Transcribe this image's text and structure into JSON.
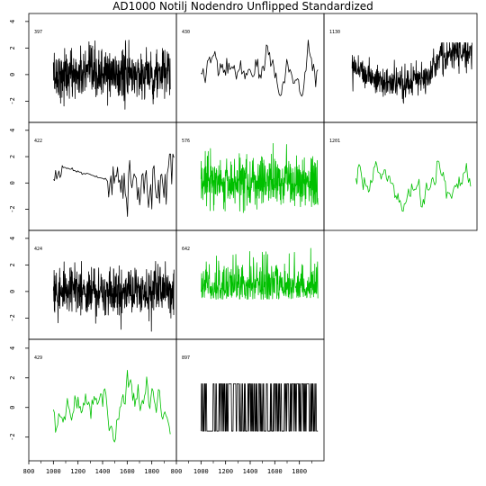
{
  "title": "AD1000 Notilj Nodendro Unflipped Standardized",
  "colors": {
    "black_series": "#000000",
    "green_series": "#00c000",
    "frame": "#000000",
    "background": "#ffffff"
  },
  "chart_data": {
    "type": "line",
    "layout": "small-multiples",
    "grid": false,
    "x_ticks": [
      "800",
      "1000",
      "1200",
      "1400",
      "1600",
      "1800"
    ],
    "x_tick_values": [
      800,
      1000,
      1200,
      1400,
      1600,
      1800
    ],
    "y_ticks": [
      "-2",
      "0",
      "2",
      "4"
    ],
    "y_tick_values": [
      -2,
      0,
      2,
      4
    ],
    "xlim": [
      800,
      2000
    ],
    "ylim": [
      -3.6,
      4.6
    ],
    "panels": [
      {
        "id": "397",
        "color": "black",
        "row": 0,
        "col": 0,
        "style": "dense",
        "x_start": 1000,
        "x_end": 1950
      },
      {
        "id": "430",
        "color": "black",
        "row": 0,
        "col": 1,
        "style": "smooth",
        "x_start": 1000,
        "x_end": 1950
      },
      {
        "id": "1130",
        "color": "black",
        "row": 0,
        "col": 2,
        "style": "trend",
        "x_start": 1020,
        "x_end": 1960
      },
      {
        "id": "422",
        "color": "black",
        "row": 1,
        "col": 0,
        "style": "gap",
        "x_start": 1000,
        "x_end": 1980
      },
      {
        "id": "576",
        "color": "green",
        "row": 1,
        "col": 1,
        "style": "dense",
        "x_start": 1000,
        "x_end": 1950
      },
      {
        "id": "1201",
        "color": "green",
        "row": 1,
        "col": 2,
        "style": "smooth",
        "x_start": 1050,
        "x_end": 1950
      },
      {
        "id": "424",
        "color": "black",
        "row": 2,
        "col": 0,
        "style": "dense",
        "x_start": 1000,
        "x_end": 1980
      },
      {
        "id": "642",
        "color": "green",
        "row": 2,
        "col": 1,
        "style": "medium",
        "x_start": 1000,
        "x_end": 1950
      },
      {
        "id": "429",
        "color": "green",
        "row": 3,
        "col": 0,
        "style": "smooth",
        "x_start": 1000,
        "x_end": 1950
      },
      {
        "id": "897",
        "color": "black",
        "row": 3,
        "col": 1,
        "style": "binary",
        "x_start": 1000,
        "x_end": 1950
      }
    ]
  }
}
